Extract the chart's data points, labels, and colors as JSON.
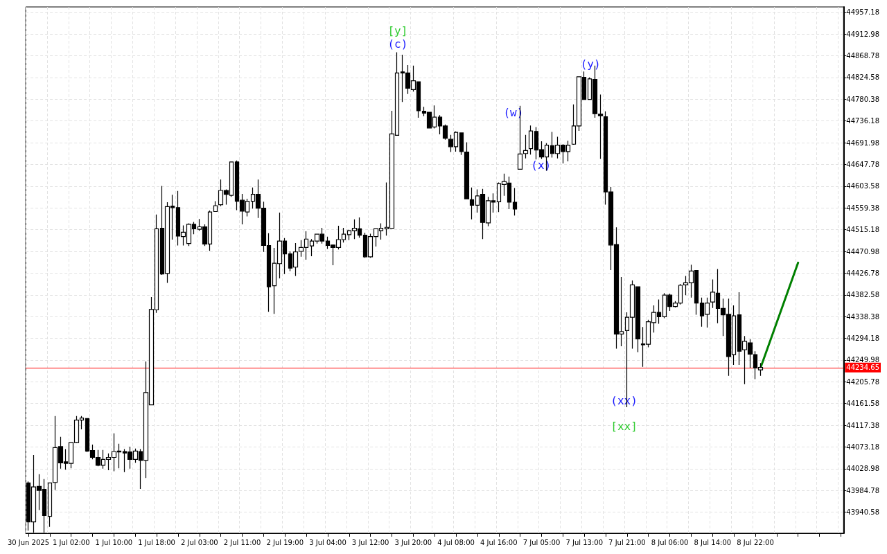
{
  "chart_data": {
    "type": "candlestick",
    "categories": [
      "30 Jun 2025",
      null,
      null,
      null,
      null,
      null,
      null,
      null,
      "1 Jul 02:00",
      null,
      null,
      null,
      null,
      null,
      null,
      null,
      "1 Jul 10:00",
      null,
      null,
      null,
      null,
      null,
      null,
      null,
      "1 Jul 18:00",
      null,
      null,
      null,
      null,
      null,
      null,
      null,
      "2 Jul 03:00",
      null,
      null,
      null,
      null,
      null,
      null,
      null,
      "2 Jul 11:00",
      null,
      null,
      null,
      null,
      null,
      null,
      null,
      "2 Jul 19:00",
      null,
      null,
      null,
      null,
      null,
      null,
      null,
      "3 Jul 04:00",
      null,
      null,
      null,
      null,
      null,
      null,
      null,
      "3 Jul 12:00",
      null,
      null,
      null,
      null,
      null,
      null,
      null,
      "3 Jul 20:00",
      null,
      null,
      null,
      null,
      null,
      null,
      null,
      "4 Jul 08:00",
      null,
      null,
      null,
      null,
      null,
      null,
      null,
      "4 Jul 16:00",
      null,
      null,
      null,
      null,
      null,
      null,
      null,
      "7 Jul 05:00",
      null,
      null,
      null,
      null,
      null,
      null,
      null,
      "7 Jul 13:00",
      null,
      null,
      null,
      null,
      null,
      null,
      null,
      "7 Jul 21:00",
      null,
      null,
      null,
      null,
      null,
      null,
      null,
      "8 Jul 06:00",
      null,
      null,
      null,
      null,
      null,
      null,
      null,
      "8 Jul 14:00",
      null,
      null,
      null,
      null,
      null,
      null,
      null,
      "8 Jul 22:00",
      null,
      null,
      null,
      null,
      null,
      null,
      null,
      null,
      null,
      null,
      null,
      null,
      null,
      null,
      null,
      null
    ],
    "ohlc": [
      [
        44000,
        44003,
        43903,
        43921
      ],
      [
        43921,
        44057,
        43899,
        43992
      ],
      [
        43993,
        44018,
        43945,
        43985
      ],
      [
        43987,
        44008,
        43899,
        43934
      ],
      [
        43932,
        44001,
        43911,
        44000
      ],
      [
        44001,
        44136,
        43986,
        44072
      ],
      [
        44074,
        44094,
        44029,
        44041
      ],
      [
        44043,
        44069,
        44027,
        44040
      ],
      [
        44040,
        44083,
        44030,
        44082
      ],
      [
        44082,
        44136,
        44081,
        44128
      ],
      [
        44128,
        44136,
        44109,
        44132
      ],
      [
        44131,
        44131,
        44063,
        44065
      ],
      [
        44066,
        44078,
        44048,
        44052
      ],
      [
        44052,
        44067,
        44034,
        44036
      ],
      [
        44036,
        44067,
        44029,
        44048
      ],
      [
        44048,
        44060,
        44026,
        44052
      ],
      [
        44052,
        44101,
        44024,
        44064
      ],
      [
        44065,
        44080,
        44030,
        44063
      ],
      [
        44064,
        44069,
        44022,
        44061
      ],
      [
        44063,
        44074,
        44029,
        44048
      ],
      [
        44048,
        44070,
        44041,
        44065
      ],
      [
        44064,
        44069,
        43988,
        44046
      ],
      [
        44046,
        44247,
        44010,
        44184
      ],
      [
        44159,
        44378,
        44158,
        44353
      ],
      [
        44352,
        44546,
        44346,
        44517
      ],
      [
        44518,
        44604,
        44423,
        44425
      ],
      [
        44426,
        44571,
        44407,
        44562
      ],
      [
        44563,
        44586,
        44495,
        44560
      ],
      [
        44560,
        44594,
        44483,
        44502
      ],
      [
        44501,
        44524,
        44483,
        44510
      ],
      [
        44487,
        44528,
        44482,
        44526
      ],
      [
        44526,
        44531,
        44506,
        44517
      ],
      [
        44516,
        44537,
        44513,
        44521
      ],
      [
        44521,
        44526,
        44482,
        44486
      ],
      [
        44486,
        44554,
        44472,
        44551
      ],
      [
        44552,
        44573,
        44552,
        44564
      ],
      [
        44566,
        44617,
        44563,
        44595
      ],
      [
        44595,
        44597,
        44566,
        44587
      ],
      [
        44585,
        44653,
        44582,
        44653
      ],
      [
        44653,
        44656,
        44555,
        44573
      ],
      [
        44575,
        44588,
        44526,
        44553
      ],
      [
        44551,
        44578,
        44542,
        44573
      ],
      [
        44573,
        44601,
        44558,
        44587
      ],
      [
        44587,
        44617,
        44539,
        44559
      ],
      [
        44559,
        44572,
        44470,
        44483
      ],
      [
        44483,
        44508,
        44348,
        44399
      ],
      [
        44401,
        44478,
        44344,
        44447
      ],
      [
        44446,
        44550,
        44416,
        44492
      ],
      [
        44492,
        44498,
        44425,
        44466
      ],
      [
        44466,
        44471,
        44431,
        44437
      ],
      [
        44439,
        44488,
        44421,
        44470
      ],
      [
        44471,
        44494,
        44460,
        44479
      ],
      [
        44479,
        44512,
        44454,
        44496
      ],
      [
        44482,
        44496,
        44461,
        44492
      ],
      [
        44492,
        44507,
        44487,
        44506
      ],
      [
        44506,
        44519,
        44487,
        44492
      ],
      [
        44492,
        44501,
        44476,
        44483
      ],
      [
        44484,
        44485,
        44443,
        44479
      ],
      [
        44479,
        44523,
        44475,
        44495
      ],
      [
        44495,
        44519,
        44489,
        44506
      ],
      [
        44505,
        44515,
        44494,
        44513
      ],
      [
        44513,
        44536,
        44496,
        44518
      ],
      [
        44517,
        44540,
        44499,
        44504
      ],
      [
        44504,
        44509,
        44458,
        44460
      ],
      [
        44460,
        44507,
        44458,
        44501
      ],
      [
        44501,
        44518,
        44481,
        44517
      ],
      [
        44513,
        44528,
        44495,
        44518
      ],
      [
        44517,
        44611,
        44503,
        44520
      ],
      [
        44518,
        44757,
        44517,
        44710
      ],
      [
        44707,
        44876,
        44707,
        44834
      ],
      [
        44836,
        44871,
        44775,
        44834
      ],
      [
        44834,
        44850,
        44791,
        44803
      ],
      [
        44800,
        44849,
        44796,
        44818
      ],
      [
        44816,
        44816,
        44743,
        44757
      ],
      [
        44756,
        44765,
        44746,
        44752
      ],
      [
        44754,
        44754,
        44721,
        44722
      ],
      [
        44724,
        44768,
        44721,
        44744
      ],
      [
        44744,
        44748,
        44709,
        44726
      ],
      [
        44726,
        44729,
        44698,
        44701
      ],
      [
        44699,
        44708,
        44673,
        44684
      ],
      [
        44684,
        44715,
        44674,
        44713
      ],
      [
        44712,
        44713,
        44667,
        44674
      ],
      [
        44673,
        44693,
        44577,
        44578
      ],
      [
        44576,
        44601,
        44536,
        44565
      ],
      [
        44565,
        44597,
        44550,
        44584
      ],
      [
        44587,
        44598,
        44496,
        44530
      ],
      [
        44529,
        44582,
        44522,
        44574
      ],
      [
        44574,
        44589,
        44550,
        44571
      ],
      [
        44572,
        44611,
        44551,
        44609
      ],
      [
        44607,
        44629,
        44584,
        44613
      ],
      [
        44610,
        44623,
        44557,
        44571
      ],
      [
        44571,
        44600,
        44544,
        44557
      ],
      [
        44638,
        44767,
        44638,
        44669
      ],
      [
        44670,
        44708,
        44660,
        44676
      ],
      [
        44680,
        44727,
        44668,
        44716
      ],
      [
        44715,
        44724,
        44658,
        44677
      ],
      [
        44678,
        44695,
        44659,
        44663
      ],
      [
        44663,
        44691,
        44635,
        44687
      ],
      [
        44686,
        44714,
        44662,
        44670
      ],
      [
        44670,
        44704,
        44660,
        44687
      ],
      [
        44687,
        44689,
        44650,
        44674
      ],
      [
        44674,
        44696,
        44654,
        44687
      ],
      [
        44689,
        44770,
        44688,
        44726
      ],
      [
        44726,
        44827,
        44716,
        44826
      ],
      [
        44825,
        44837,
        44779,
        44780
      ],
      [
        44780,
        44825,
        44779,
        44822
      ],
      [
        44821,
        44849,
        44743,
        44751
      ],
      [
        44750,
        44790,
        44659,
        44747
      ],
      [
        44745,
        44756,
        44566,
        44592
      ],
      [
        44592,
        44602,
        44433,
        44484
      ],
      [
        44485,
        44520,
        44273,
        44303
      ],
      [
        44303,
        44419,
        44278,
        44308
      ],
      [
        44310,
        44347,
        44154,
        44337
      ],
      [
        44337,
        44412,
        44273,
        44403
      ],
      [
        44399,
        44400,
        44266,
        44293
      ],
      [
        44283,
        44317,
        44236,
        44281
      ],
      [
        44282,
        44332,
        44276,
        44328
      ],
      [
        44326,
        44361,
        44306,
        44347
      ],
      [
        44347,
        44373,
        44324,
        44338
      ],
      [
        44338,
        44386,
        44335,
        44382
      ],
      [
        44382,
        44385,
        44350,
        44359
      ],
      [
        44359,
        44370,
        44357,
        44366
      ],
      [
        44366,
        44405,
        44363,
        44402
      ],
      [
        44403,
        44421,
        44382,
        44407
      ],
      [
        44407,
        44444,
        44377,
        44431
      ],
      [
        44432,
        44432,
        44342,
        44366
      ],
      [
        44366,
        44377,
        44318,
        44340
      ],
      [
        44343,
        44377,
        44316,
        44366
      ],
      [
        44368,
        44414,
        44356,
        44388
      ],
      [
        44386,
        44435,
        44325,
        44355
      ],
      [
        44355,
        44375,
        44299,
        44342
      ],
      [
        44343,
        44375,
        44218,
        44257
      ],
      [
        44261,
        44361,
        44240,
        44340
      ],
      [
        44342,
        44388,
        44240,
        44268
      ],
      [
        44271,
        44299,
        44201,
        44288
      ],
      [
        44285,
        44292,
        44234,
        44262
      ],
      [
        44261,
        44268,
        44211,
        44234
      ],
      [
        44230,
        44244,
        44218,
        44235
      ],
      null,
      null,
      null,
      null,
      null,
      null,
      null,
      null,
      null,
      null,
      null,
      null,
      null,
      null,
      null
    ],
    "series": [
      {
        "type": "line",
        "color": "#008000",
        "values": [
          null,
          null,
          null,
          null,
          null,
          null,
          null,
          null,
          null,
          null,
          null,
          null,
          null,
          null,
          null,
          null,
          null,
          null,
          null,
          null,
          null,
          null,
          null,
          null,
          null,
          null,
          null,
          null,
          null,
          null,
          null,
          null,
          null,
          null,
          null,
          null,
          null,
          null,
          null,
          null,
          null,
          null,
          null,
          null,
          null,
          null,
          null,
          null,
          null,
          null,
          null,
          null,
          null,
          null,
          null,
          null,
          null,
          null,
          null,
          null,
          null,
          null,
          null,
          null,
          null,
          null,
          null,
          null,
          null,
          null,
          null,
          null,
          null,
          null,
          null,
          null,
          null,
          null,
          null,
          null,
          null,
          null,
          null,
          null,
          null,
          null,
          null,
          null,
          null,
          null,
          null,
          null,
          null,
          null,
          null,
          null,
          null,
          null,
          null,
          null,
          null,
          null,
          null,
          null,
          null,
          null,
          null,
          null,
          null,
          null,
          null,
          null,
          null,
          null,
          null,
          null,
          null,
          null,
          null,
          null,
          null,
          null,
          null,
          null,
          null,
          null,
          null,
          null,
          null,
          null,
          null,
          null,
          null,
          null,
          null,
          null,
          null,
          44235,
          null,
          null,
          null,
          null,
          null,
          null,
          44448,
          null,
          null,
          null,
          null,
          null,
          null,
          null,
          null
        ]
      }
    ],
    "ylim": [
      43897.8,
      44968.2
    ],
    "yticks": [
      43940.58,
      43984.78,
      44028.98,
      44073.18,
      44117.38,
      44161.58,
      44205.78,
      44249.98,
      44294.18,
      44338.38,
      44382.58,
      44426.78,
      44470.98,
      44515.18,
      44559.38,
      44603.58,
      44647.78,
      44691.98,
      44736.18,
      44780.38,
      44824.58,
      44868.78,
      44912.98,
      44957.18
    ],
    "grid": true,
    "ref_lines": [
      {
        "axis": "y",
        "value": 44234.65,
        "label": "44234.65",
        "color": "#ff0000"
      }
    ],
    "annotations": [
      "[y]",
      "(c)",
      "(w)",
      "(x)",
      "(y)",
      "(xx)",
      "[xx]"
    ]
  }
}
